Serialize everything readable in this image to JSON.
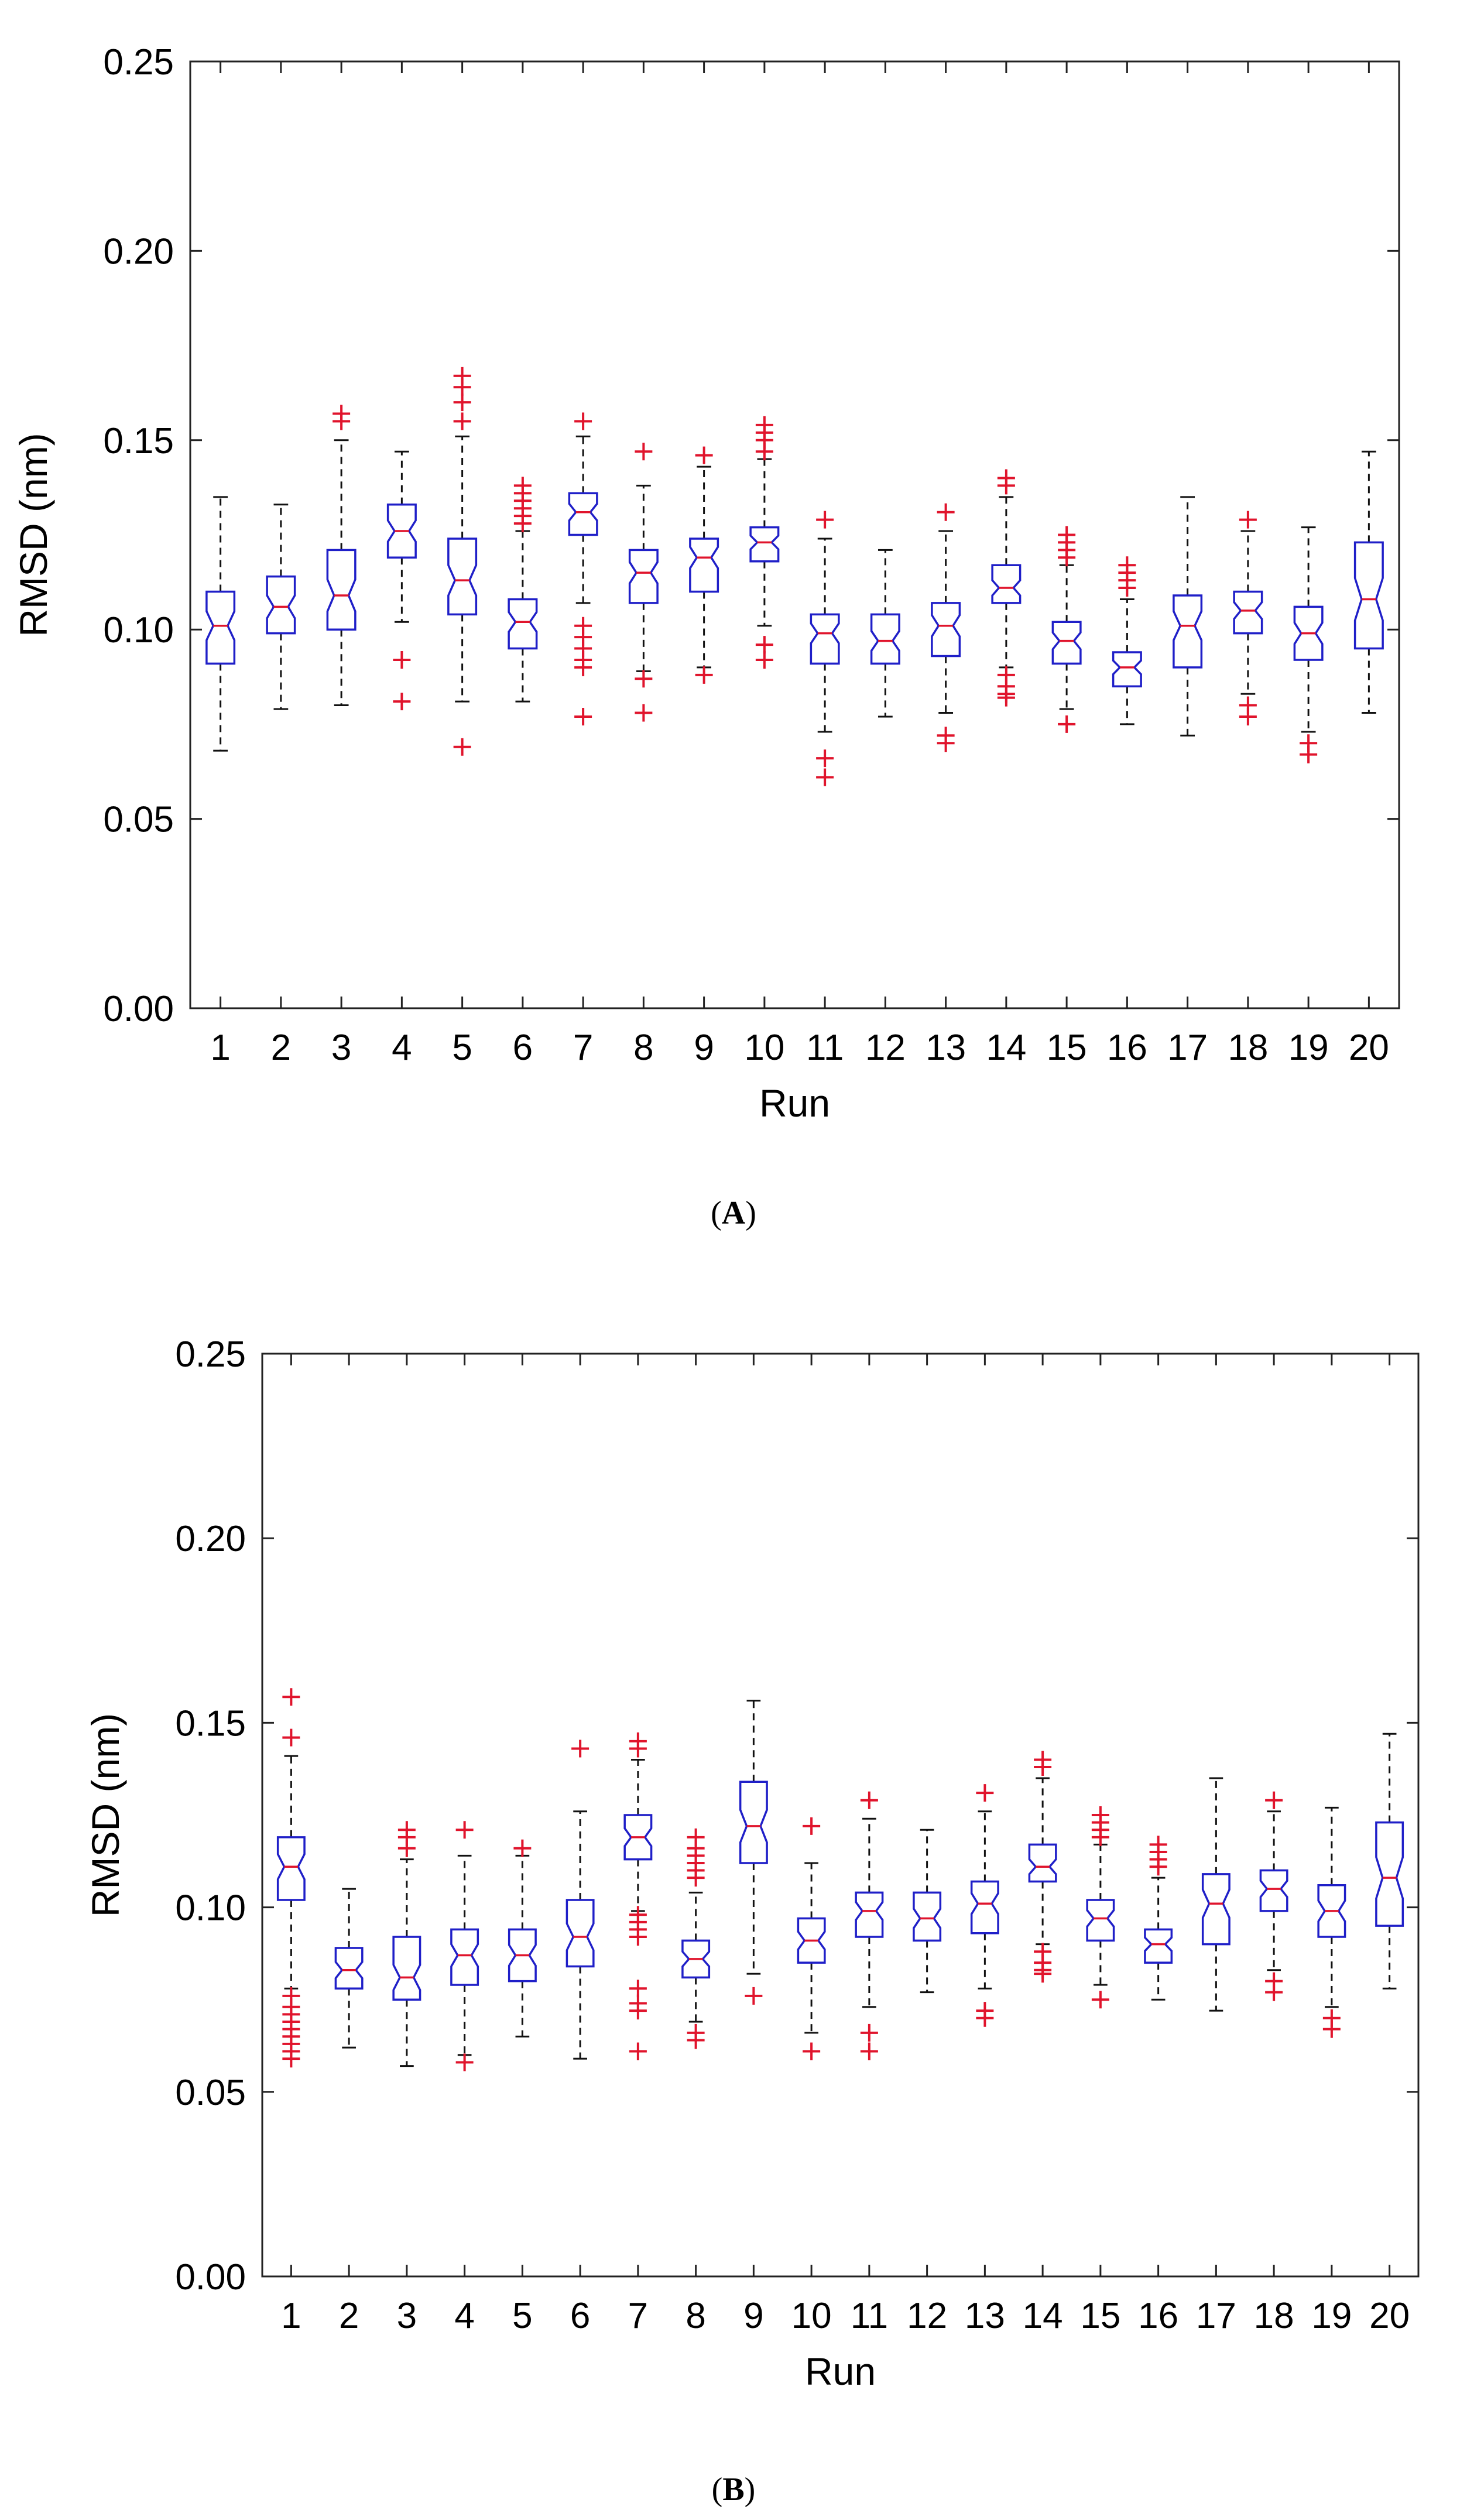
{
  "colors": {
    "box": "#1f1fc8",
    "median": "#e0142c",
    "outlier": "#e0142c",
    "whisker": "#111111",
    "axis": "#222222"
  },
  "chart_data": [
    {
      "type": "boxplot",
      "caption": "A",
      "xlabel": "Run",
      "ylabel": "RMSD (nm)",
      "ylim": [
        0,
        0.25
      ],
      "yticks": [
        "0.00",
        "0.05",
        "0.10",
        "0.15",
        "0.20",
        "0.25"
      ],
      "categories": [
        "1",
        "2",
        "3",
        "4",
        "5",
        "6",
        "7",
        "8",
        "9",
        "10",
        "11",
        "12",
        "13",
        "14",
        "15",
        "16",
        "17",
        "18",
        "19",
        "20"
      ],
      "boxes": [
        {
          "lw": 0.068,
          "q1": 0.091,
          "med": 0.101,
          "q3": 0.11,
          "uw": 0.135,
          "out": []
        },
        {
          "lw": 0.079,
          "q1": 0.099,
          "med": 0.106,
          "q3": 0.114,
          "uw": 0.133,
          "out": []
        },
        {
          "lw": 0.08,
          "q1": 0.1,
          "med": 0.109,
          "q3": 0.121,
          "uw": 0.15,
          "out": [
            0.155,
            0.157
          ]
        },
        {
          "lw": 0.102,
          "q1": 0.119,
          "med": 0.126,
          "q3": 0.133,
          "uw": 0.147,
          "out": [
            0.092,
            0.081
          ]
        },
        {
          "lw": 0.081,
          "q1": 0.104,
          "med": 0.113,
          "q3": 0.124,
          "uw": 0.151,
          "out": [
            0.155,
            0.16,
            0.164,
            0.167,
            0.069
          ]
        },
        {
          "lw": 0.081,
          "q1": 0.095,
          "med": 0.102,
          "q3": 0.108,
          "uw": 0.126,
          "out": [
            0.128,
            0.13,
            0.132,
            0.134,
            0.136,
            0.138
          ]
        },
        {
          "lw": 0.107,
          "q1": 0.125,
          "med": 0.131,
          "q3": 0.136,
          "uw": 0.151,
          "out": [
            0.155,
            0.101,
            0.098,
            0.095,
            0.092,
            0.09,
            0.077
          ]
        },
        {
          "lw": 0.089,
          "q1": 0.107,
          "med": 0.115,
          "q3": 0.121,
          "uw": 0.138,
          "out": [
            0.147,
            0.087,
            0.078
          ]
        },
        {
          "lw": 0.09,
          "q1": 0.11,
          "med": 0.119,
          "q3": 0.124,
          "uw": 0.143,
          "out": [
            0.146,
            0.088
          ]
        },
        {
          "lw": 0.101,
          "q1": 0.118,
          "med": 0.123,
          "q3": 0.127,
          "uw": 0.145,
          "out": [
            0.147,
            0.15,
            0.152,
            0.154,
            0.096,
            0.092
          ]
        },
        {
          "lw": 0.073,
          "q1": 0.091,
          "med": 0.099,
          "q3": 0.104,
          "uw": 0.124,
          "out": [
            0.129,
            0.066,
            0.061
          ]
        },
        {
          "lw": 0.077,
          "q1": 0.091,
          "med": 0.097,
          "q3": 0.104,
          "uw": 0.121,
          "out": []
        },
        {
          "lw": 0.078,
          "q1": 0.093,
          "med": 0.101,
          "q3": 0.107,
          "uw": 0.126,
          "out": [
            0.131,
            0.072,
            0.07
          ]
        },
        {
          "lw": 0.09,
          "q1": 0.107,
          "med": 0.111,
          "q3": 0.117,
          "uw": 0.135,
          "out": [
            0.138,
            0.14,
            0.088,
            0.085,
            0.083,
            0.082
          ]
        },
        {
          "lw": 0.079,
          "q1": 0.091,
          "med": 0.097,
          "q3": 0.102,
          "uw": 0.117,
          "out": [
            0.119,
            0.121,
            0.123,
            0.125,
            0.075
          ]
        },
        {
          "lw": 0.075,
          "q1": 0.085,
          "med": 0.09,
          "q3": 0.094,
          "uw": 0.108,
          "out": [
            0.111,
            0.113,
            0.115,
            0.117
          ]
        },
        {
          "lw": 0.072,
          "q1": 0.09,
          "med": 0.101,
          "q3": 0.109,
          "uw": 0.135,
          "out": []
        },
        {
          "lw": 0.083,
          "q1": 0.099,
          "med": 0.105,
          "q3": 0.11,
          "uw": 0.126,
          "out": [
            0.129,
            0.08,
            0.077
          ]
        },
        {
          "lw": 0.073,
          "q1": 0.092,
          "med": 0.099,
          "q3": 0.106,
          "uw": 0.127,
          "out": [
            0.07,
            0.067
          ]
        },
        {
          "lw": 0.078,
          "q1": 0.095,
          "med": 0.108,
          "q3": 0.123,
          "uw": 0.147,
          "out": []
        }
      ]
    },
    {
      "type": "boxplot",
      "caption": "B",
      "xlabel": "Run",
      "ylabel": "RMSD (nm)",
      "ylim": [
        0,
        0.25
      ],
      "yticks": [
        "0.00",
        "0.05",
        "0.10",
        "0.15",
        "0.20",
        "0.25"
      ],
      "categories": [
        "1",
        "2",
        "3",
        "4",
        "5",
        "6",
        "7",
        "8",
        "9",
        "10",
        "11",
        "12",
        "13",
        "14",
        "15",
        "16",
        "17",
        "18",
        "19",
        "20"
      ],
      "boxes": [
        {
          "lw": 0.078,
          "q1": 0.102,
          "med": 0.111,
          "q3": 0.119,
          "uw": 0.141,
          "out": [
            0.146,
            0.157,
            0.076,
            0.073,
            0.071,
            0.069,
            0.067,
            0.065,
            0.063,
            0.061,
            0.059
          ]
        },
        {
          "lw": 0.062,
          "q1": 0.078,
          "med": 0.083,
          "q3": 0.089,
          "uw": 0.105,
          "out": []
        },
        {
          "lw": 0.057,
          "q1": 0.075,
          "med": 0.081,
          "q3": 0.092,
          "uw": 0.113,
          "out": [
            0.116,
            0.119,
            0.121
          ]
        },
        {
          "lw": 0.06,
          "q1": 0.079,
          "med": 0.087,
          "q3": 0.094,
          "uw": 0.114,
          "out": [
            0.121,
            0.058
          ]
        },
        {
          "lw": 0.065,
          "q1": 0.08,
          "med": 0.087,
          "q3": 0.094,
          "uw": 0.114,
          "out": [
            0.116
          ]
        },
        {
          "lw": 0.059,
          "q1": 0.084,
          "med": 0.092,
          "q3": 0.102,
          "uw": 0.126,
          "out": [
            0.143
          ]
        },
        {
          "lw": 0.099,
          "q1": 0.113,
          "med": 0.119,
          "q3": 0.125,
          "uw": 0.14,
          "out": [
            0.143,
            0.145,
            0.098,
            0.096,
            0.094,
            0.092,
            0.078,
            0.074,
            0.072,
            0.061
          ]
        },
        {
          "lw": 0.069,
          "q1": 0.081,
          "med": 0.086,
          "q3": 0.091,
          "uw": 0.104,
          "out": [
            0.108,
            0.11,
            0.112,
            0.114,
            0.116,
            0.119,
            0.066,
            0.064
          ]
        },
        {
          "lw": 0.082,
          "q1": 0.112,
          "med": 0.122,
          "q3": 0.134,
          "uw": 0.156,
          "out": [
            0.076
          ]
        },
        {
          "lw": 0.066,
          "q1": 0.085,
          "med": 0.091,
          "q3": 0.097,
          "uw": 0.112,
          "out": [
            0.122,
            0.061
          ]
        },
        {
          "lw": 0.073,
          "q1": 0.092,
          "med": 0.099,
          "q3": 0.104,
          "uw": 0.124,
          "out": [
            0.129,
            0.066,
            0.061
          ]
        },
        {
          "lw": 0.077,
          "q1": 0.091,
          "med": 0.097,
          "q3": 0.104,
          "uw": 0.121,
          "out": []
        },
        {
          "lw": 0.078,
          "q1": 0.093,
          "med": 0.101,
          "q3": 0.107,
          "uw": 0.126,
          "out": [
            0.131,
            0.072,
            0.07
          ]
        },
        {
          "lw": 0.09,
          "q1": 0.107,
          "med": 0.111,
          "q3": 0.117,
          "uw": 0.135,
          "out": [
            0.138,
            0.14,
            0.088,
            0.085,
            0.083,
            0.082
          ]
        },
        {
          "lw": 0.079,
          "q1": 0.091,
          "med": 0.097,
          "q3": 0.102,
          "uw": 0.117,
          "out": [
            0.119,
            0.121,
            0.123,
            0.125,
            0.075
          ]
        },
        {
          "lw": 0.075,
          "q1": 0.085,
          "med": 0.09,
          "q3": 0.094,
          "uw": 0.108,
          "out": [
            0.111,
            0.113,
            0.115,
            0.117
          ]
        },
        {
          "lw": 0.072,
          "q1": 0.09,
          "med": 0.101,
          "q3": 0.109,
          "uw": 0.135,
          "out": []
        },
        {
          "lw": 0.083,
          "q1": 0.099,
          "med": 0.105,
          "q3": 0.11,
          "uw": 0.126,
          "out": [
            0.129,
            0.08,
            0.077
          ]
        },
        {
          "lw": 0.073,
          "q1": 0.092,
          "med": 0.099,
          "q3": 0.106,
          "uw": 0.127,
          "out": [
            0.07,
            0.067
          ]
        },
        {
          "lw": 0.078,
          "q1": 0.095,
          "med": 0.108,
          "q3": 0.123,
          "uw": 0.147,
          "out": []
        }
      ]
    }
  ]
}
